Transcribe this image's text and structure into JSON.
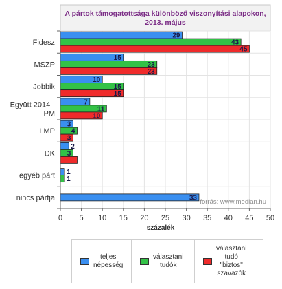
{
  "chart_data": {
    "type": "bar",
    "orientation": "horizontal",
    "title": "A pártok támogatottsága különböző viszonyítási alapokon, 2013. május",
    "title_lines": [
      "A pártok támogatottsága különböző viszonyítási alapokon,",
      "2013. május"
    ],
    "title_color": "#7b2d86",
    "xlabel": "százalék",
    "xlim": [
      0,
      50
    ],
    "xticks": [
      0,
      5,
      10,
      15,
      20,
      25,
      30,
      35,
      40,
      45,
      50
    ],
    "grid": true,
    "source": "forrás: www.median.hu",
    "categories": [
      {
        "label": [
          "Fidesz"
        ]
      },
      {
        "label": [
          "MSZP"
        ]
      },
      {
        "label": [
          "Jobbik"
        ]
      },
      {
        "label": [
          "Együtt 2014 -",
          "PM"
        ]
      },
      {
        "label": [
          "LMP"
        ]
      },
      {
        "label": [
          "DK"
        ]
      },
      {
        "label": [
          "egyéb párt"
        ]
      },
      {
        "label": [
          "nincs pártja"
        ]
      }
    ],
    "series": [
      {
        "name": "teljes népesség",
        "color": "#3a8ff0",
        "values": [
          29,
          15,
          10,
          7,
          3,
          2,
          1,
          33
        ],
        "data_labels": [
          "29",
          "15",
          "10",
          "7",
          "3",
          "2",
          "1",
          "33"
        ]
      },
      {
        "name": "választani tudók",
        "color": "#33c247",
        "values": [
          43,
          23,
          15,
          11,
          4,
          3,
          1,
          null
        ],
        "data_labels": [
          "43",
          "23",
          "15",
          "11",
          "4",
          "3",
          "1",
          ""
        ]
      },
      {
        "name": "választani tudó \"biztos\" szavazók",
        "color": "#ef2b2b",
        "values": [
          45,
          23,
          15,
          10,
          3,
          4,
          null,
          null
        ],
        "data_labels": [
          "45",
          "23",
          "15",
          "10",
          "3",
          "",
          "",
          ""
        ]
      }
    ]
  },
  "legend": {
    "items": [
      {
        "label_lines": [
          "teljes",
          "népesség"
        ],
        "color": "#3a8ff0"
      },
      {
        "label_lines": [
          "választani",
          "tudók"
        ],
        "color": "#33c247"
      },
      {
        "label_lines": [
          "választani",
          "tudó",
          "\"biztos\"",
          "szavazók"
        ],
        "color": "#ef2b2b"
      }
    ]
  }
}
